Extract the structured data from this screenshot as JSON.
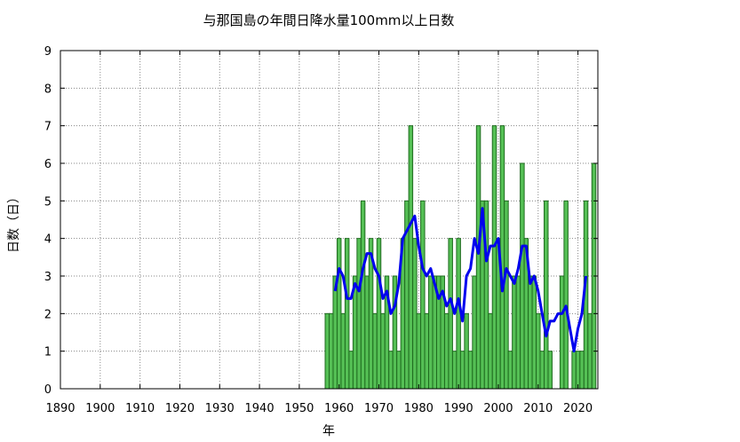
{
  "chart_data": {
    "type": "bar",
    "title": "与那国島の年間日降水量100mm以上日数",
    "xlabel": "年",
    "ylabel": "日数（日）",
    "xlim": [
      1890,
      2025
    ],
    "ylim": [
      0,
      9
    ],
    "x_ticks": [
      "1890",
      "1900",
      "1910",
      "1920",
      "1930",
      "1940",
      "1950",
      "1960",
      "1970",
      "1980",
      "1990",
      "2000",
      "2010",
      "2020"
    ],
    "y_ticks": [
      "0",
      "1",
      "2",
      "3",
      "4",
      "5",
      "6",
      "7",
      "8",
      "9"
    ],
    "grid": true,
    "colors": {
      "bar_fill": "#55c055",
      "bar_edge": "#1f6b1f",
      "line": "#0000ee"
    },
    "series": [
      {
        "kind": "bar",
        "x": [
          1957,
          1958,
          1959,
          1960,
          1961,
          1962,
          1963,
          1964,
          1965,
          1966,
          1967,
          1968,
          1969,
          1970,
          1971,
          1972,
          1973,
          1974,
          1975,
          1976,
          1977,
          1978,
          1979,
          1980,
          1981,
          1982,
          1983,
          1984,
          1985,
          1986,
          1987,
          1988,
          1989,
          1990,
          1991,
          1992,
          1993,
          1994,
          1995,
          1996,
          1997,
          1998,
          1999,
          2000,
          2001,
          2002,
          2003,
          2004,
          2005,
          2006,
          2007,
          2008,
          2009,
          2010,
          2011,
          2012,
          2013,
          2014,
          2015,
          2016,
          2017,
          2018,
          2019,
          2020,
          2021,
          2022,
          2023,
          2024
        ],
        "values": [
          2,
          2,
          3,
          4,
          2,
          4,
          1,
          3,
          4,
          5,
          3,
          4,
          2,
          4,
          2,
          3,
          1,
          3,
          1,
          4,
          5,
          7,
          4,
          2,
          5,
          2,
          3,
          3,
          3,
          3,
          2,
          4,
          1,
          4,
          1,
          2,
          1,
          3,
          7,
          5,
          5,
          2,
          7,
          4,
          7,
          5,
          1,
          3,
          3,
          6,
          4,
          3,
          3,
          2,
          1,
          5,
          1,
          0,
          0,
          3,
          5,
          0,
          1,
          1,
          1,
          5,
          2,
          6
        ]
      },
      {
        "kind": "line",
        "x": [
          1959,
          1960,
          1961,
          1962,
          1963,
          1964,
          1965,
          1966,
          1967,
          1968,
          1969,
          1970,
          1971,
          1972,
          1973,
          1974,
          1975,
          1976,
          1977,
          1978,
          1979,
          1980,
          1981,
          1982,
          1983,
          1984,
          1985,
          1986,
          1987,
          1988,
          1989,
          1990,
          1991,
          1992,
          1993,
          1994,
          1995,
          1996,
          1997,
          1998,
          1999,
          2000,
          2001,
          2002,
          2003,
          2004,
          2005,
          2006,
          2007,
          2008,
          2009,
          2010,
          2011,
          2012,
          2013,
          2014,
          2015,
          2016,
          2017,
          2018,
          2019,
          2020,
          2021,
          2022
        ],
        "values": [
          2.6,
          3.2,
          3.0,
          2.4,
          2.4,
          2.8,
          2.6,
          3.2,
          3.6,
          3.6,
          3.2,
          3.0,
          2.4,
          2.6,
          2.0,
          2.2,
          2.8,
          4.0,
          4.2,
          4.4,
          4.6,
          3.8,
          3.2,
          3.0,
          3.2,
          2.8,
          2.4,
          2.6,
          2.2,
          2.4,
          2.0,
          2.4,
          1.8,
          3.0,
          3.2,
          4.0,
          3.6,
          4.8,
          3.4,
          3.8,
          3.8,
          4.0,
          2.6,
          3.2,
          3.0,
          2.8,
          3.2,
          3.8,
          3.8,
          2.8,
          3.0,
          2.6,
          2.0,
          1.4,
          1.8,
          1.8,
          2.0,
          2.0,
          2.2,
          1.6,
          1.0,
          1.6,
          2.0,
          3.0
        ]
      }
    ]
  }
}
